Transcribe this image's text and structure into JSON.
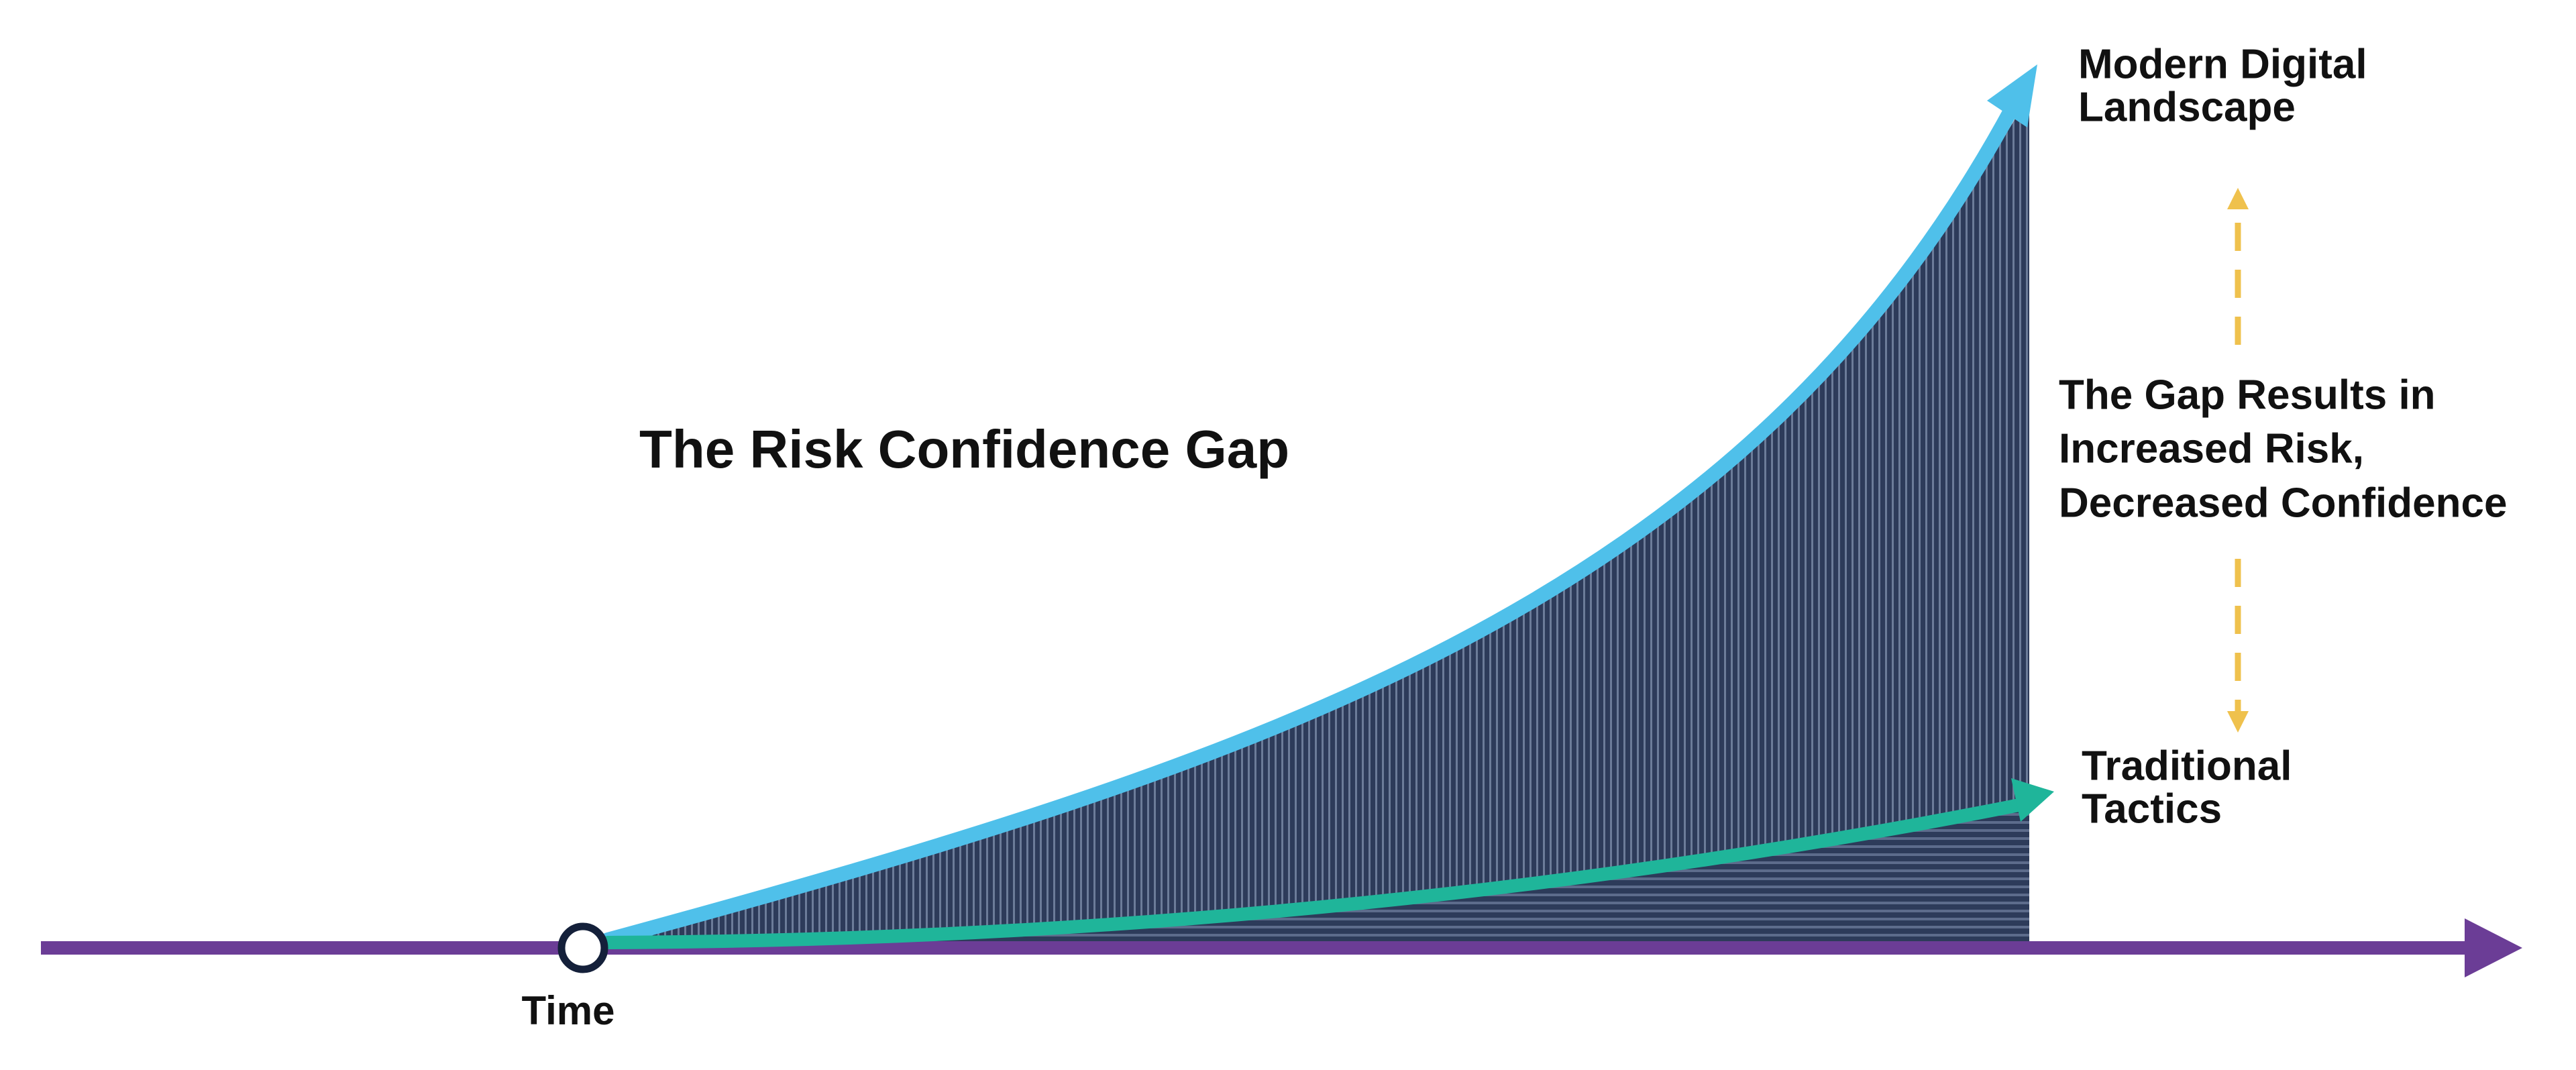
{
  "title": "The Risk Confidence Gap",
  "labels": {
    "modern": {
      "lines": [
        "Modern Digital",
        "Landscape"
      ]
    },
    "traditional": {
      "lines": [
        "Traditional",
        "Tactics"
      ]
    },
    "gap": {
      "lines": [
        "The Gap Results in",
        "Increased Risk,",
        "Decreased Confidence"
      ]
    },
    "axis": "Time"
  }
}
